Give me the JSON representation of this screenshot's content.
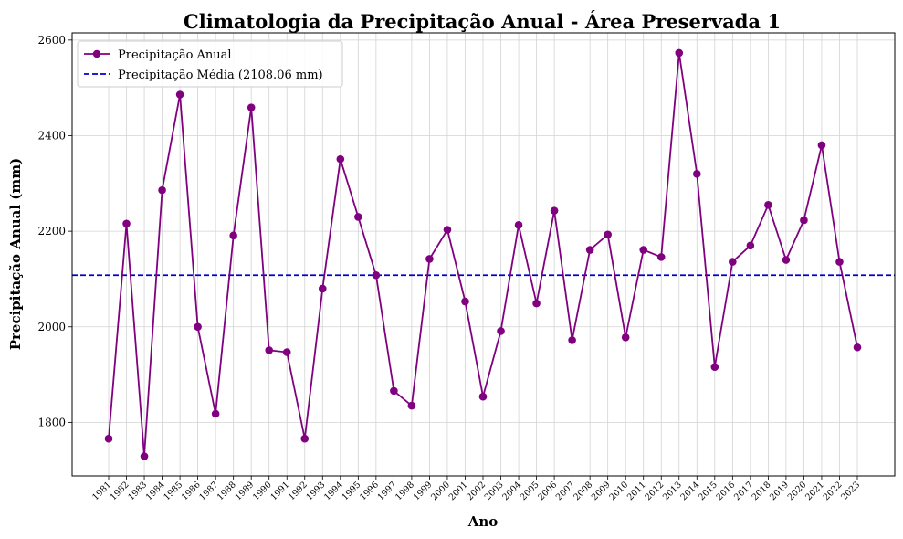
{
  "chart_data": {
    "type": "line",
    "title": "Climatologia da Precipitação Anual - Área Preservada 1",
    "xlabel": "Ano",
    "ylabel": "Precipitação Anual (mm)",
    "ylim": [
      1688,
      2615
    ],
    "yticks": [
      1800,
      2000,
      2200,
      2400,
      2600
    ],
    "grid": true,
    "legend_position": "top-left",
    "colors": {
      "series": "#800080",
      "mean": "#0000cc",
      "grid": "#d3d3d3",
      "axis": "#000000"
    },
    "x": [
      "1981",
      "1982",
      "1983",
      "1984",
      "1985",
      "1986",
      "1987",
      "1988",
      "1989",
      "1990",
      "1991",
      "1992",
      "1993",
      "1994",
      "1995",
      "1996",
      "1997",
      "1998",
      "1999",
      "2000",
      "2001",
      "2002",
      "2003",
      "2004",
      "2005",
      "2006",
      "2007",
      "2008",
      "2009",
      "2010",
      "2011",
      "2012",
      "2013",
      "2014",
      "2015",
      "2016",
      "2017",
      "2018",
      "2019",
      "2020",
      "2021",
      "2022",
      "2023"
    ],
    "series": [
      {
        "name": "Precipitação Anual",
        "values": [
          1766,
          2216,
          1729,
          2286,
          2486,
          2000,
          1818,
          2191,
          2459,
          1951,
          1947,
          1766,
          2080,
          2351,
          2230,
          2108,
          1866,
          1835,
          2142,
          2203,
          2053,
          1854,
          1991,
          2213,
          2049,
          2243,
          1972,
          2161,
          2193,
          1978,
          2161,
          2146,
          2573,
          2320,
          1916,
          2136,
          2170,
          2255,
          2140,
          2223,
          2380,
          2136,
          1957
        ]
      }
    ],
    "mean": {
      "name": "Precipitação Média (2108.06 mm)",
      "value": 2108.06
    }
  }
}
